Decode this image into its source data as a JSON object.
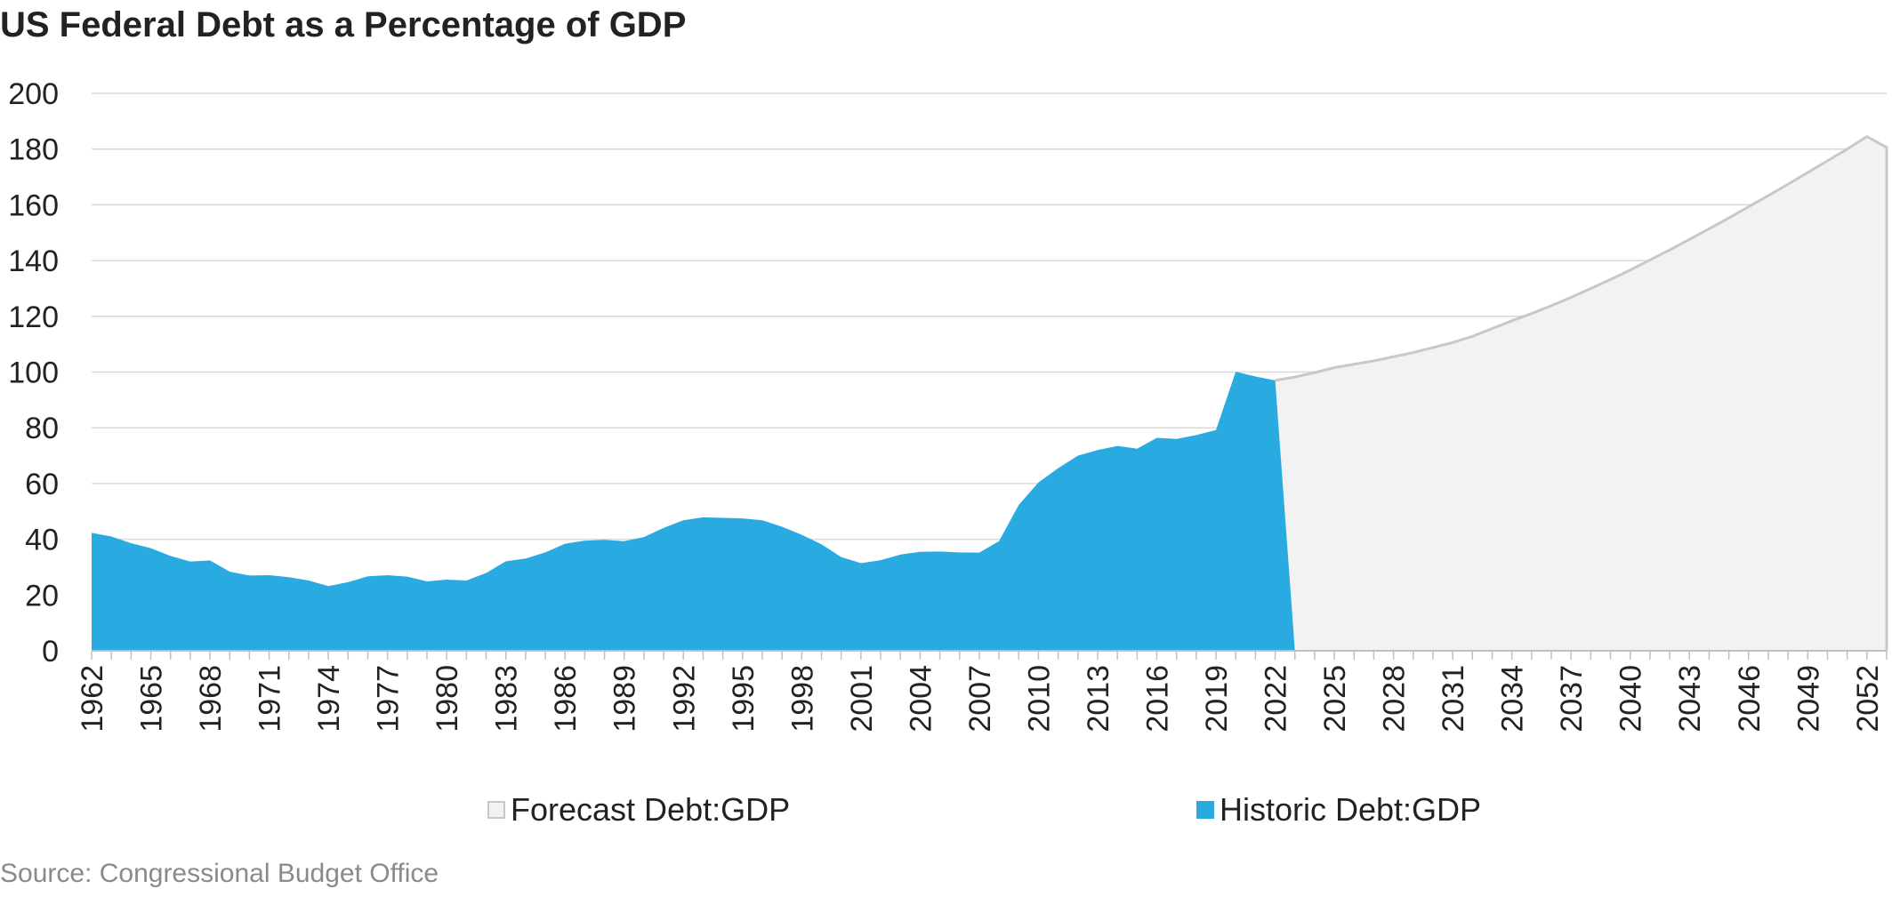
{
  "title": "US Federal Debt as a Percentage of GDP",
  "source": "Source: Congressional Budget Office",
  "legend": {
    "forecast_label": "Forecast Debt:GDP",
    "historic_label": "Historic Debt:GDP"
  },
  "colors": {
    "historic_fill": "#29abe2",
    "forecast_fill": "#f2f2f2",
    "forecast_line": "#c8c8c8",
    "gridline": "#d9d9d9",
    "axis": "#bfbfbf"
  },
  "chart_data": {
    "type": "area",
    "title": "US Federal Debt as a Percentage of GDP",
    "xlabel": "",
    "ylabel": "",
    "ylim": [
      0,
      200
    ],
    "yticks": [
      0,
      20,
      40,
      60,
      80,
      100,
      120,
      140,
      160,
      180,
      200
    ],
    "xticks": [
      1962,
      1965,
      1968,
      1971,
      1974,
      1977,
      1980,
      1983,
      1986,
      1989,
      1992,
      1995,
      1998,
      2001,
      2004,
      2007,
      2010,
      2013,
      2016,
      2019,
      2022,
      2025,
      2028,
      2031,
      2034,
      2037,
      2040,
      2043,
      2046,
      2049,
      2052
    ],
    "xlim": [
      1962,
      2053
    ],
    "grid": true,
    "legend_position": "bottom",
    "series": [
      {
        "name": "Historic Debt:GDP",
        "x": [
          1962,
          1963,
          1964,
          1965,
          1966,
          1967,
          1968,
          1969,
          1970,
          1971,
          1972,
          1973,
          1974,
          1975,
          1976,
          1977,
          1978,
          1979,
          1980,
          1981,
          1982,
          1983,
          1984,
          1985,
          1986,
          1987,
          1988,
          1989,
          1990,
          1991,
          1992,
          1993,
          1994,
          1995,
          1996,
          1997,
          1998,
          1999,
          2000,
          2001,
          2002,
          2003,
          2004,
          2005,
          2006,
          2007,
          2008,
          2009,
          2010,
          2011,
          2012,
          2013,
          2014,
          2015,
          2016,
          2017,
          2018,
          2019,
          2020,
          2021,
          2022,
          2023
        ],
        "values": [
          42.3,
          41.0,
          38.6,
          36.8,
          34.0,
          32.0,
          32.4,
          28.4,
          27.0,
          27.1,
          26.4,
          25.2,
          23.2,
          24.6,
          26.7,
          27.1,
          26.6,
          24.9,
          25.5,
          25.2,
          27.9,
          32.1,
          33.1,
          35.3,
          38.4,
          39.5,
          39.8,
          39.3,
          40.8,
          44.1,
          46.8,
          47.9,
          47.7,
          47.5,
          46.8,
          44.5,
          41.6,
          38.2,
          33.6,
          31.4,
          32.5,
          34.5,
          35.5,
          35.6,
          35.3,
          35.2,
          39.3,
          52.3,
          60.4,
          65.5,
          70.0,
          72.0,
          73.5,
          72.5,
          76.4,
          76.0,
          77.4,
          79.2,
          100.1,
          98.4,
          97.0,
          0
        ]
      },
      {
        "name": "Forecast Debt:GDP",
        "x": [
          2022,
          2023,
          2024,
          2025,
          2026,
          2027,
          2028,
          2029,
          2030,
          2031,
          2032,
          2033,
          2034,
          2035,
          2036,
          2037,
          2038,
          2039,
          2040,
          2041,
          2042,
          2043,
          2044,
          2045,
          2046,
          2047,
          2048,
          2049,
          2050,
          2051,
          2052,
          2053
        ],
        "values": [
          97.0,
          98.2,
          99.8,
          101.6,
          102.8,
          104.0,
          105.5,
          107.0,
          108.8,
          110.6,
          112.8,
          115.6,
          118.4,
          121.0,
          123.8,
          126.8,
          130.0,
          133.2,
          136.6,
          140.2,
          143.8,
          147.6,
          151.4,
          155.3,
          159.3,
          163.3,
          167.4,
          171.6,
          175.8,
          180.0,
          184.5,
          180.6
        ]
      }
    ]
  }
}
